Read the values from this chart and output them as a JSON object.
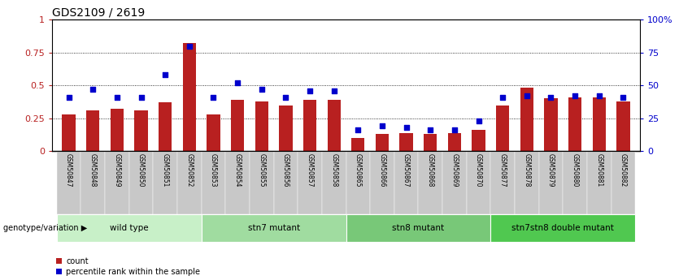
{
  "title": "GDS2109 / 2619",
  "samples": [
    "GSM50847",
    "GSM50848",
    "GSM50849",
    "GSM50850",
    "GSM50851",
    "GSM50852",
    "GSM50853",
    "GSM50854",
    "GSM50855",
    "GSM50856",
    "GSM50857",
    "GSM50858",
    "GSM50865",
    "GSM50866",
    "GSM50867",
    "GSM50868",
    "GSM50869",
    "GSM50870",
    "GSM50877",
    "GSM50878",
    "GSM50879",
    "GSM50880",
    "GSM50881",
    "GSM50882"
  ],
  "counts": [
    0.28,
    0.31,
    0.32,
    0.31,
    0.37,
    0.82,
    0.28,
    0.39,
    0.38,
    0.35,
    0.39,
    0.39,
    0.1,
    0.13,
    0.14,
    0.13,
    0.14,
    0.16,
    0.35,
    0.48,
    0.4,
    0.41,
    0.41,
    0.38
  ],
  "percentile": [
    0.41,
    0.47,
    0.41,
    0.41,
    0.58,
    0.8,
    0.41,
    0.52,
    0.47,
    0.41,
    0.46,
    0.46,
    0.16,
    0.19,
    0.18,
    0.16,
    0.16,
    0.23,
    0.41,
    0.42,
    0.41,
    0.42,
    0.42,
    0.41
  ],
  "groups": [
    {
      "label": "wild type",
      "start": 0,
      "end": 6,
      "color": "#c8f0c8"
    },
    {
      "label": "stn7 mutant",
      "start": 6,
      "end": 12,
      "color": "#a0dca0"
    },
    {
      "label": "stn8 mutant",
      "start": 12,
      "end": 18,
      "color": "#78c878"
    },
    {
      "label": "stn7stn8 double mutant",
      "start": 18,
      "end": 24,
      "color": "#50c850"
    }
  ],
  "bar_color": "#b82020",
  "dot_color": "#0000cc",
  "ylim_left": [
    0,
    1
  ],
  "ylim_right": [
    0,
    100
  ],
  "yticks_left": [
    0,
    0.25,
    0.5,
    0.75,
    1.0
  ],
  "ytick_labels_left": [
    "0",
    "0.25",
    "0.5",
    "0.75",
    "1"
  ],
  "yticks_right": [
    0,
    25,
    50,
    75,
    100
  ],
  "ytick_labels_right": [
    "0",
    "25",
    "50",
    "75",
    "100%"
  ],
  "legend_count": "count",
  "legend_pct": "percentile rank within the sample",
  "genotype_label": "genotype/variation",
  "background_color": "#ffffff",
  "xticklabel_bg": "#c8c8c8"
}
